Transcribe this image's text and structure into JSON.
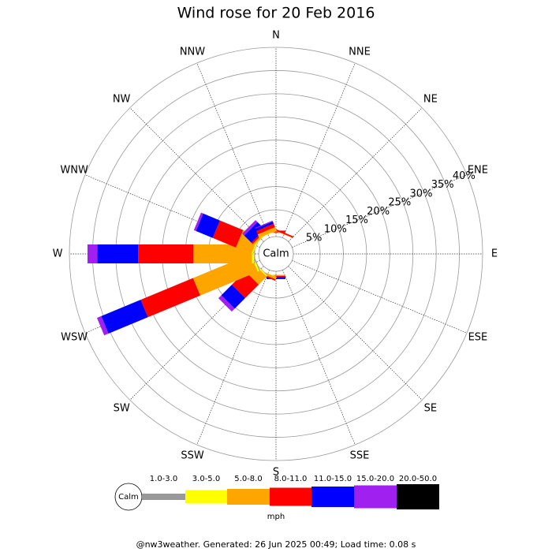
{
  "chart_data": {
    "type": "windrose",
    "title": "Wind rose for 20 Feb 2016",
    "calm_label": "Calm",
    "unit_label": "mph",
    "footer": "@nw3weather. Generated: 26 Jun 2025 00:49; Load time: 0.08 s",
    "categories": [
      "N",
      "NNE",
      "NE",
      "ENE",
      "E",
      "ESE",
      "SE",
      "SSE",
      "S",
      "SSW",
      "SW",
      "WSW",
      "W",
      "WNW",
      "NW",
      "NNW"
    ],
    "ylim": [
      0,
      40
    ],
    "yticks": [
      {
        "value": 5,
        "label": "5%"
      },
      {
        "value": 10,
        "label": "10%"
      },
      {
        "value": 15,
        "label": "15%"
      },
      {
        "value": 20,
        "label": "20%"
      },
      {
        "value": 25,
        "label": "25%"
      },
      {
        "value": 30,
        "label": "30%"
      },
      {
        "value": 35,
        "label": "35%"
      },
      {
        "value": 40,
        "label": "40%"
      }
    ],
    "series": [
      {
        "name": "1.0-3.0",
        "color": "#999999",
        "values": [
          0,
          0,
          0,
          0,
          0,
          0,
          0,
          0,
          0,
          0,
          0.1,
          0.2,
          0.2,
          0.1,
          0.05,
          0
        ]
      },
      {
        "name": "3.0-5.0",
        "color": "#ffff00",
        "values": [
          0,
          0,
          0,
          0,
          0,
          0,
          0,
          0,
          0,
          0.1,
          0.3,
          0.4,
          0.5,
          0.3,
          0.1,
          0.1
        ]
      },
      {
        "name": "5.0-8.0",
        "color": "#ffa500",
        "values": [
          0.1,
          0.1,
          0,
          0,
          0,
          0,
          0,
          0,
          0.2,
          0.5,
          2.4,
          13.4,
          12.6,
          3.6,
          0.4,
          0.8
        ]
      },
      {
        "name": "8.0-11.0",
        "color": "#ff0000",
        "values": [
          0.4,
          0.3,
          0,
          0,
          0,
          0,
          0,
          0,
          0.3,
          0.3,
          4.1,
          12.2,
          11.9,
          5.4,
          0.4,
          0.8
        ]
      },
      {
        "name": "11.0-15.0",
        "color": "#0000ff",
        "values": [
          0,
          0,
          0,
          0,
          0,
          0,
          0,
          0,
          0.4,
          0,
          3.2,
          9.2,
          8.8,
          3.9,
          2.2,
          0.5
        ]
      },
      {
        "name": "15.0-20.0",
        "color": "#a020f0",
        "values": [
          0,
          0,
          0,
          0,
          0,
          0,
          0,
          0,
          0,
          0,
          0.9,
          1.0,
          2.1,
          0.5,
          0.6,
          0.2
        ]
      },
      {
        "name": "20.0-50.0",
        "color": "#000000",
        "values": [
          0,
          0,
          0,
          0,
          0,
          0,
          0,
          0,
          0,
          0,
          0,
          0,
          0,
          0,
          0,
          0
        ]
      }
    ]
  }
}
